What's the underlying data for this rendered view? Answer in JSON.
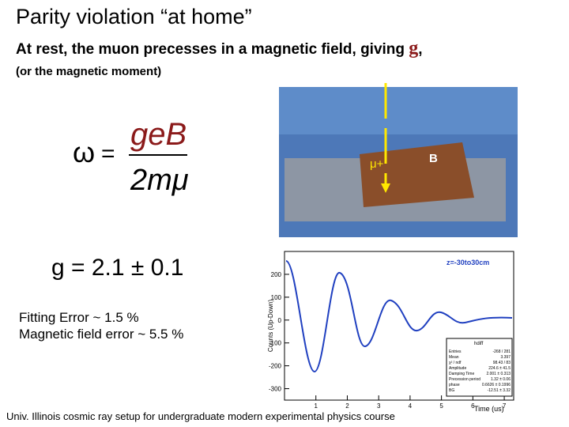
{
  "header": {
    "title": "Parity violation “at home”",
    "subtitle_start": "At rest, the muon precesses in a magnetic field, giving ",
    "subtitle_g": "g",
    "subtitle_end": ",",
    "note": "(or the magnetic moment)"
  },
  "formula": {
    "lhs": "ω",
    "equals": "=",
    "numerator": "geB",
    "denominator": "2mμ"
  },
  "photo": {
    "muon_label": "μ+",
    "field_label": "B"
  },
  "result": {
    "g_value": "g = 2.1 ± 0.1",
    "errors": [
      "Fitting Error ~ 1.5 %",
      "Magnetic field error  ~ 5.5 %"
    ]
  },
  "plot": {
    "region_label": "z=-30to30cm",
    "y_axis_label": "Counts (Up-Down)",
    "x_axis_label": "Time (us)",
    "yticks": [
      200,
      100,
      0,
      -100,
      -200,
      -300
    ],
    "ylim": [
      -350,
      300
    ],
    "xticks": [
      1,
      2,
      3,
      4,
      5,
      6,
      7
    ],
    "xlim": [
      0,
      7.3
    ],
    "stats_title": "hdiff",
    "stats": [
      [
        "Entries",
        "-268 / 281"
      ],
      [
        "Mean",
        "3.397"
      ],
      [
        "χ² / ndf",
        "98.43 / 83"
      ],
      [
        "Amplitude",
        "224.6 ± 41.5"
      ],
      [
        "Damping Time",
        "2.001 ± 0.313"
      ],
      [
        "Precession period",
        "1.32 ± 0.06"
      ],
      [
        "phase",
        "0.6626 ± 0.1996"
      ],
      [
        "BG",
        "-12.51 ± 3.32"
      ]
    ]
  },
  "footer": "Univ. Illinois cosmic ray setup for undergraduate modern experimental physics course"
}
